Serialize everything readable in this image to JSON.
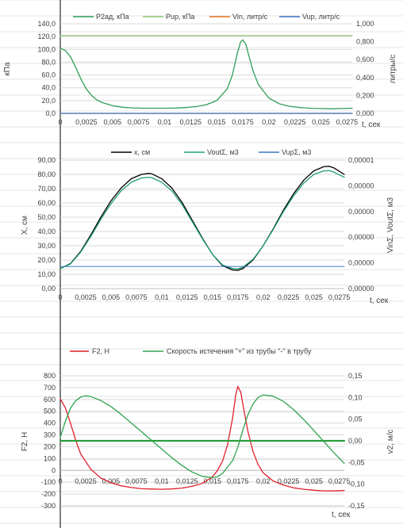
{
  "colors": {
    "sheet_grid": "#e4e4e4",
    "plot_grid": "#d9d9d9",
    "axis_text": "#404040",
    "p2ad": "#2e9e58",
    "pup": "#8fc870",
    "vin": "#e8711a",
    "vup": "#3d73c6",
    "x": "#000000",
    "vout": "#21a06c",
    "vupsum": "#3d73c6",
    "f2": "#e0202a",
    "v2": "#2fa350",
    "zero_line": "#2a9d3c"
  },
  "chart_data": [
    {
      "type": "line",
      "title": "",
      "xlabel": "t, сек",
      "ylabel": "кПа",
      "y2label": "литры/с",
      "xlim": [
        0,
        0.028
      ],
      "ylim": [
        0,
        140
      ],
      "y2lim": [
        0,
        1.0
      ],
      "x_ticks": [
        "0",
        "0,0025",
        "0,005",
        "0,0075",
        "0,01",
        "0,0125",
        "0,015",
        "0,0175",
        "0,02",
        "0,0225",
        "0,025",
        "0,0275"
      ],
      "y_ticks": [
        "0,0",
        "20,0",
        "40,0",
        "60,0",
        "80,0",
        "100,0",
        "120,0",
        "140,0"
      ],
      "y2_ticks": [
        "0,000",
        "0,200",
        "0,400",
        "0,600",
        "0,800",
        "1,000"
      ],
      "legend_position": "top",
      "grid": true,
      "series": [
        {
          "name": "P2ад, кПа",
          "axis": "left",
          "x": [
            0,
            0.0005,
            0.001,
            0.0015,
            0.002,
            0.0025,
            0.003,
            0.0035,
            0.004,
            0.005,
            0.006,
            0.007,
            0.008,
            0.009,
            0.01,
            0.011,
            0.012,
            0.013,
            0.014,
            0.015,
            0.016,
            0.0165,
            0.017,
            0.0173,
            0.0175,
            0.0178,
            0.018,
            0.0185,
            0.019,
            0.02,
            0.021,
            0.022,
            0.023,
            0.024,
            0.025,
            0.026,
            0.027,
            0.028
          ],
          "y": [
            102,
            98,
            88,
            71,
            53,
            38,
            28,
            21,
            17,
            12,
            9.5,
            8.5,
            8,
            8,
            8,
            8.3,
            9,
            10.5,
            13.5,
            20,
            38,
            60,
            95,
            112,
            115,
            108,
            95,
            66,
            45,
            24,
            15,
            11,
            9,
            8,
            7.5,
            7.2,
            7.5,
            8
          ]
        },
        {
          "name": "Pup, кПа",
          "axis": "left",
          "x": [
            0,
            0.028
          ],
          "y": [
            121.5,
            121.5
          ]
        },
        {
          "name": "Vin, литр/с",
          "axis": "right",
          "x": [
            0,
            0.028
          ],
          "y": [
            0,
            0
          ]
        },
        {
          "name": "Vup, литр/с",
          "axis": "right",
          "x": [
            0,
            0.028
          ],
          "y": [
            0,
            0
          ]
        }
      ]
    },
    {
      "type": "line",
      "title": "",
      "xlabel": "t, сек",
      "ylabel": "X, см",
      "y2label": "VinΣ, VoutΣ, м3",
      "xlim": [
        0,
        0.028
      ],
      "ylim": [
        0,
        90
      ],
      "y2lim": [
        0,
        1e-05
      ],
      "x_ticks": [
        "0",
        "0,0025",
        "0,005",
        "0,0075",
        "0,01",
        "0,0125",
        "0,015",
        "0,0175",
        "0,02",
        "0,0225",
        "0,025",
        "0,0275"
      ],
      "y_ticks": [
        "0,00",
        "10,00",
        "20,00",
        "30,00",
        "40,00",
        "50,00",
        "60,00",
        "70,00",
        "80,00",
        "90,00"
      ],
      "y2_ticks": [
        "0,00000",
        "0,00000",
        "0,00000",
        "0,00000",
        "0,00000",
        "0,00001"
      ],
      "legend_position": "top",
      "grid": true,
      "series": [
        {
          "name": "x, см",
          "axis": "left",
          "x": [
            0,
            0.001,
            0.002,
            0.003,
            0.004,
            0.005,
            0.006,
            0.007,
            0.008,
            0.0087,
            0.009,
            0.01,
            0.011,
            0.012,
            0.013,
            0.014,
            0.015,
            0.016,
            0.017,
            0.0175,
            0.018,
            0.019,
            0.02,
            0.021,
            0.022,
            0.023,
            0.024,
            0.025,
            0.026,
            0.0265,
            0.027,
            0.028
          ],
          "y": [
            14,
            17.5,
            26,
            37.5,
            50,
            61.5,
            70.5,
            77,
            80,
            80.7,
            80.5,
            77,
            70.5,
            60.5,
            48,
            35.5,
            24,
            16,
            13,
            12.8,
            14,
            20,
            30,
            42,
            55,
            66.5,
            76,
            82.5,
            85.5,
            85.7,
            84.5,
            80
          ]
        },
        {
          "name": "VoutΣ, м3",
          "axis": "left",
          "x": [
            0,
            0.001,
            0.002,
            0.003,
            0.004,
            0.005,
            0.006,
            0.007,
            0.008,
            0.0087,
            0.009,
            0.01,
            0.011,
            0.012,
            0.013,
            0.014,
            0.015,
            0.016,
            0.017,
            0.0175,
            0.018,
            0.019,
            0.02,
            0.021,
            0.022,
            0.023,
            0.024,
            0.025,
            0.026,
            0.0265,
            0.027,
            0.028
          ],
          "y": [
            14,
            17.2,
            25.5,
            36.5,
            48.5,
            59.5,
            68.5,
            74.5,
            77.5,
            78,
            77.8,
            74.5,
            68.5,
            59,
            47,
            35,
            24,
            16.5,
            14,
            13.8,
            15,
            20.5,
            30,
            41.5,
            54,
            65,
            74,
            80,
            82.5,
            82.7,
            81.5,
            78
          ]
        },
        {
          "name": "VupΣ, м3",
          "axis": "left",
          "x": [
            0,
            0.028
          ],
          "y": [
            15.5,
            15.5
          ]
        }
      ]
    },
    {
      "type": "line",
      "title": "",
      "xlabel": "t, сек",
      "ylabel": "F2, Н",
      "y2label": "v2, м/с",
      "xlim": [
        0,
        0.028
      ],
      "ylim": [
        -300,
        800
      ],
      "y2lim": [
        -0.15,
        0.15
      ],
      "x_ticks": [
        "0",
        "0,0025",
        "0,005",
        "0,0075",
        "0,01",
        "0,0125",
        "0,015",
        "0,0175",
        "0,02",
        "0,0225",
        "0,025",
        "0,0275"
      ],
      "y_ticks": [
        "-300",
        "-200",
        "-100",
        "0",
        "100",
        "200",
        "300",
        "400",
        "500",
        "600",
        "700",
        "800"
      ],
      "y2_ticks": [
        "-0,15",
        "-0,10",
        "-0,05",
        "0,00",
        "0,05",
        "0,10",
        "0,15"
      ],
      "legend_position": "top",
      "grid": true,
      "series": [
        {
          "name": "F2, Н",
          "axis": "left",
          "x": [
            0,
            0.0005,
            0.001,
            0.0015,
            0.002,
            0.003,
            0.004,
            0.005,
            0.006,
            0.007,
            0.008,
            0.009,
            0.01,
            0.011,
            0.012,
            0.013,
            0.014,
            0.015,
            0.0155,
            0.016,
            0.0165,
            0.017,
            0.0173,
            0.0175,
            0.0178,
            0.018,
            0.0185,
            0.019,
            0.0195,
            0.02,
            0.021,
            0.022,
            0.023,
            0.024,
            0.025,
            0.026,
            0.027,
            0.028
          ],
          "y": [
            605,
            530,
            400,
            260,
            140,
            10,
            -65,
            -105,
            -130,
            -145,
            -155,
            -158,
            -160,
            -157,
            -150,
            -135,
            -110,
            -55,
            0,
            80,
            220,
            450,
            640,
            710,
            660,
            560,
            330,
            160,
            50,
            -20,
            -90,
            -125,
            -148,
            -160,
            -168,
            -173,
            -174,
            -170
          ]
        },
        {
          "name": "Скорость истечения \"+\" из трубы \"-\" в трубу",
          "axis": "right",
          "x": [
            0,
            0.0005,
            0.001,
            0.0015,
            0.002,
            0.0025,
            0.003,
            0.004,
            0.005,
            0.006,
            0.007,
            0.008,
            0.009,
            0.01,
            0.011,
            0.012,
            0.013,
            0.014,
            0.015,
            0.0155,
            0.016,
            0.017,
            0.0175,
            0.018,
            0.0185,
            0.019,
            0.0195,
            0.02,
            0.021,
            0.022,
            0.023,
            0.024,
            0.025,
            0.026,
            0.027,
            0.028
          ],
          "y": [
            0.008,
            0.045,
            0.075,
            0.092,
            0.101,
            0.104,
            0.102,
            0.093,
            0.079,
            0.061,
            0.041,
            0.021,
            0.001,
            -0.019,
            -0.039,
            -0.057,
            -0.072,
            -0.082,
            -0.085,
            -0.083,
            -0.075,
            -0.045,
            -0.015,
            0.025,
            0.06,
            0.085,
            0.1,
            0.106,
            0.103,
            0.091,
            0.072,
            0.049,
            0.024,
            -0.002,
            -0.028,
            -0.052
          ]
        },
        {
          "name": "",
          "axis": "right",
          "x": [
            0,
            0.028
          ],
          "y": [
            0,
            0
          ]
        }
      ]
    }
  ]
}
